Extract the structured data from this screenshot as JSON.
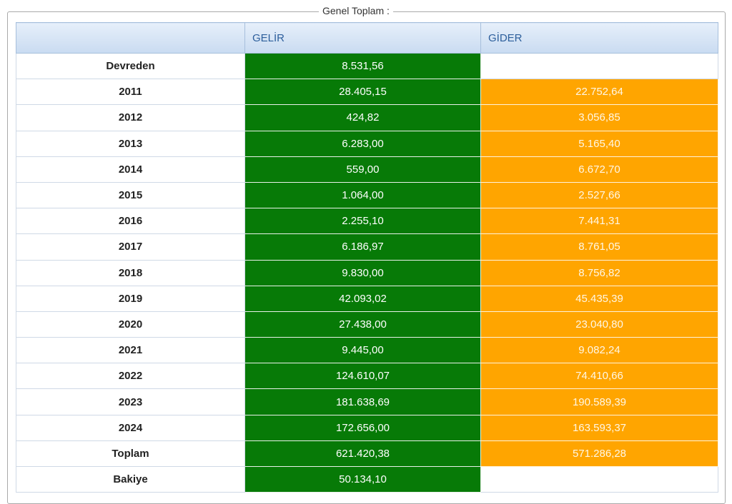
{
  "legend": "Genel Toplam :",
  "table": {
    "header": {
      "gelir": "GELİR",
      "gider": "GİDER"
    },
    "rows": [
      {
        "label": "Devreden",
        "gelir": "8.531,56"
      },
      {
        "label": "2011",
        "gelir": "28.405,15",
        "gider": "22.752,64"
      },
      {
        "label": "2012",
        "gelir": "424,82",
        "gider": "3.056,85"
      },
      {
        "label": "2013",
        "gelir": "6.283,00",
        "gider": "5.165,40"
      },
      {
        "label": "2014",
        "gelir": "559,00",
        "gider": "6.672,70"
      },
      {
        "label": "2015",
        "gelir": "1.064,00",
        "gider": "2.527,66"
      },
      {
        "label": "2016",
        "gelir": "2.255,10",
        "gider": "7.441,31"
      },
      {
        "label": "2017",
        "gelir": "6.186,97",
        "gider": "8.761,05"
      },
      {
        "label": "2018",
        "gelir": "9.830,00",
        "gider": "8.756,82"
      },
      {
        "label": "2019",
        "gelir": "42.093,02",
        "gider": "45.435,39"
      },
      {
        "label": "2020",
        "gelir": "27.438,00",
        "gider": "23.040,80"
      },
      {
        "label": "2021",
        "gelir": "9.445,00",
        "gider": "9.082,24"
      },
      {
        "label": "2022",
        "gelir": "124.610,07",
        "gider": "74.410,66"
      },
      {
        "label": "2023",
        "gelir": "181.638,69",
        "gider": "190.589,39"
      },
      {
        "label": "2024",
        "gelir": "172.656,00",
        "gider": "163.593,37"
      },
      {
        "label": "Toplam",
        "gelir": "621.420,38",
        "gider": "571.286,28"
      },
      {
        "label": "Bakiye",
        "gelir": "50.134,10"
      }
    ]
  }
}
